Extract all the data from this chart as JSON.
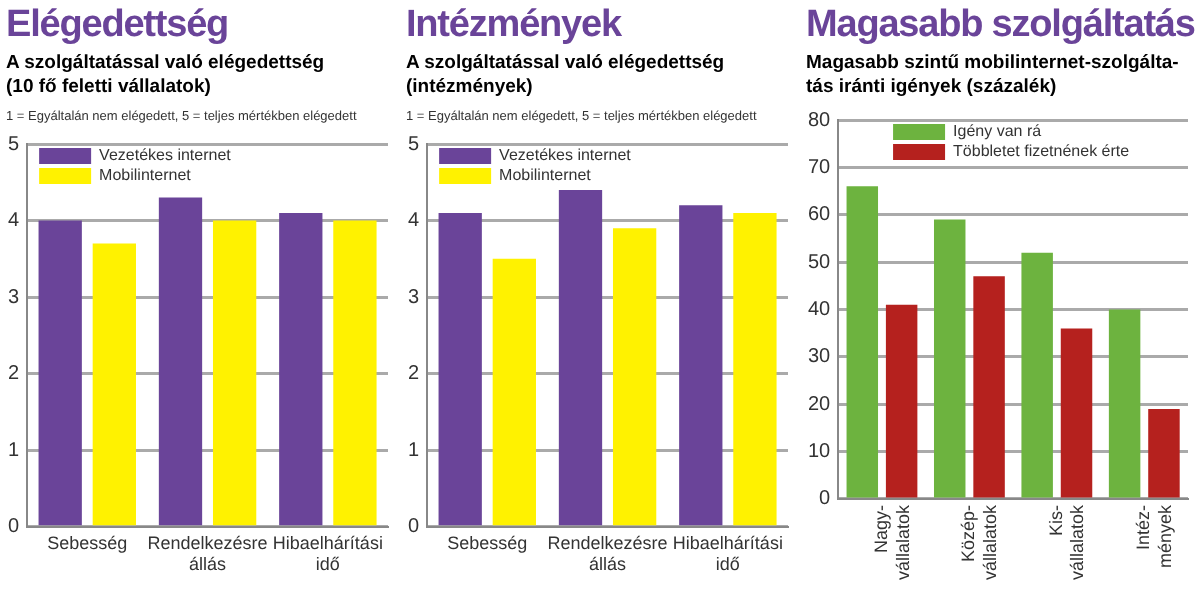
{
  "chart_data": [
    {
      "type": "bar",
      "title": "Elégedettség",
      "subtitle": "A szolgáltatással való elégedettség\n(10 fő feletti vállalatok)",
      "annotations": [
        "1 = Egyáltalán nem elégedett, 5 = teljes mértékben elégedett"
      ],
      "categories": [
        "Sebesség",
        "Rendelkezésre\nállás",
        "Hibaelhárítási\nidő"
      ],
      "series": [
        {
          "name": "Vezetékes internet",
          "color": "#6a4499",
          "values": [
            4.0,
            4.3,
            4.1
          ]
        },
        {
          "name": "Mobilinternet",
          "color": "#fff200",
          "values": [
            3.7,
            4.0,
            4.0
          ]
        }
      ],
      "ylim": [
        0,
        5
      ],
      "yticks": [
        0,
        1,
        2,
        3,
        4,
        5
      ],
      "grid": "y",
      "legend": "top left"
    },
    {
      "type": "bar",
      "title": "Intézmények",
      "subtitle": "A szolgáltatással való elégedettség\n(intézmények)",
      "annotations": [
        "1 = Egyáltalán nem elégedett, 5 = teljes mértékben elégedett"
      ],
      "categories": [
        "Sebesség",
        "Rendelkezésre\nállás",
        "Hibaelhárítási\nidő"
      ],
      "series": [
        {
          "name": "Vezetékes internet",
          "color": "#6a4499",
          "values": [
            4.1,
            4.4,
            4.2
          ]
        },
        {
          "name": "Mobilinternet",
          "color": "#fff200",
          "values": [
            3.5,
            3.9,
            4.1
          ]
        }
      ],
      "ylim": [
        0,
        5
      ],
      "yticks": [
        0,
        1,
        2,
        3,
        4,
        5
      ],
      "grid": "y",
      "legend": "top left"
    },
    {
      "type": "bar",
      "title": "Magasabb szolgáltatás",
      "subtitle": "Magasabb szintű mobilinternet-szolgálta-\ntás iránti igények (százalék)",
      "categories": [
        "Nagy-\nvállalatok",
        "Közép-\nvállalatok",
        "Kis-\nvállalatok",
        "Intéz-\nmények"
      ],
      "series": [
        {
          "name": "Igény van rá",
          "color": "#6db33f",
          "values": [
            66,
            59,
            52,
            40
          ]
        },
        {
          "name": "Többletet fizetnének érte",
          "color": "#b5211e",
          "values": [
            41,
            47,
            36,
            19
          ]
        }
      ],
      "ylim": [
        0,
        80
      ],
      "yticks": [
        0,
        10,
        20,
        30,
        40,
        50,
        60,
        70,
        80
      ],
      "grid": "y",
      "legend": "top"
    }
  ]
}
